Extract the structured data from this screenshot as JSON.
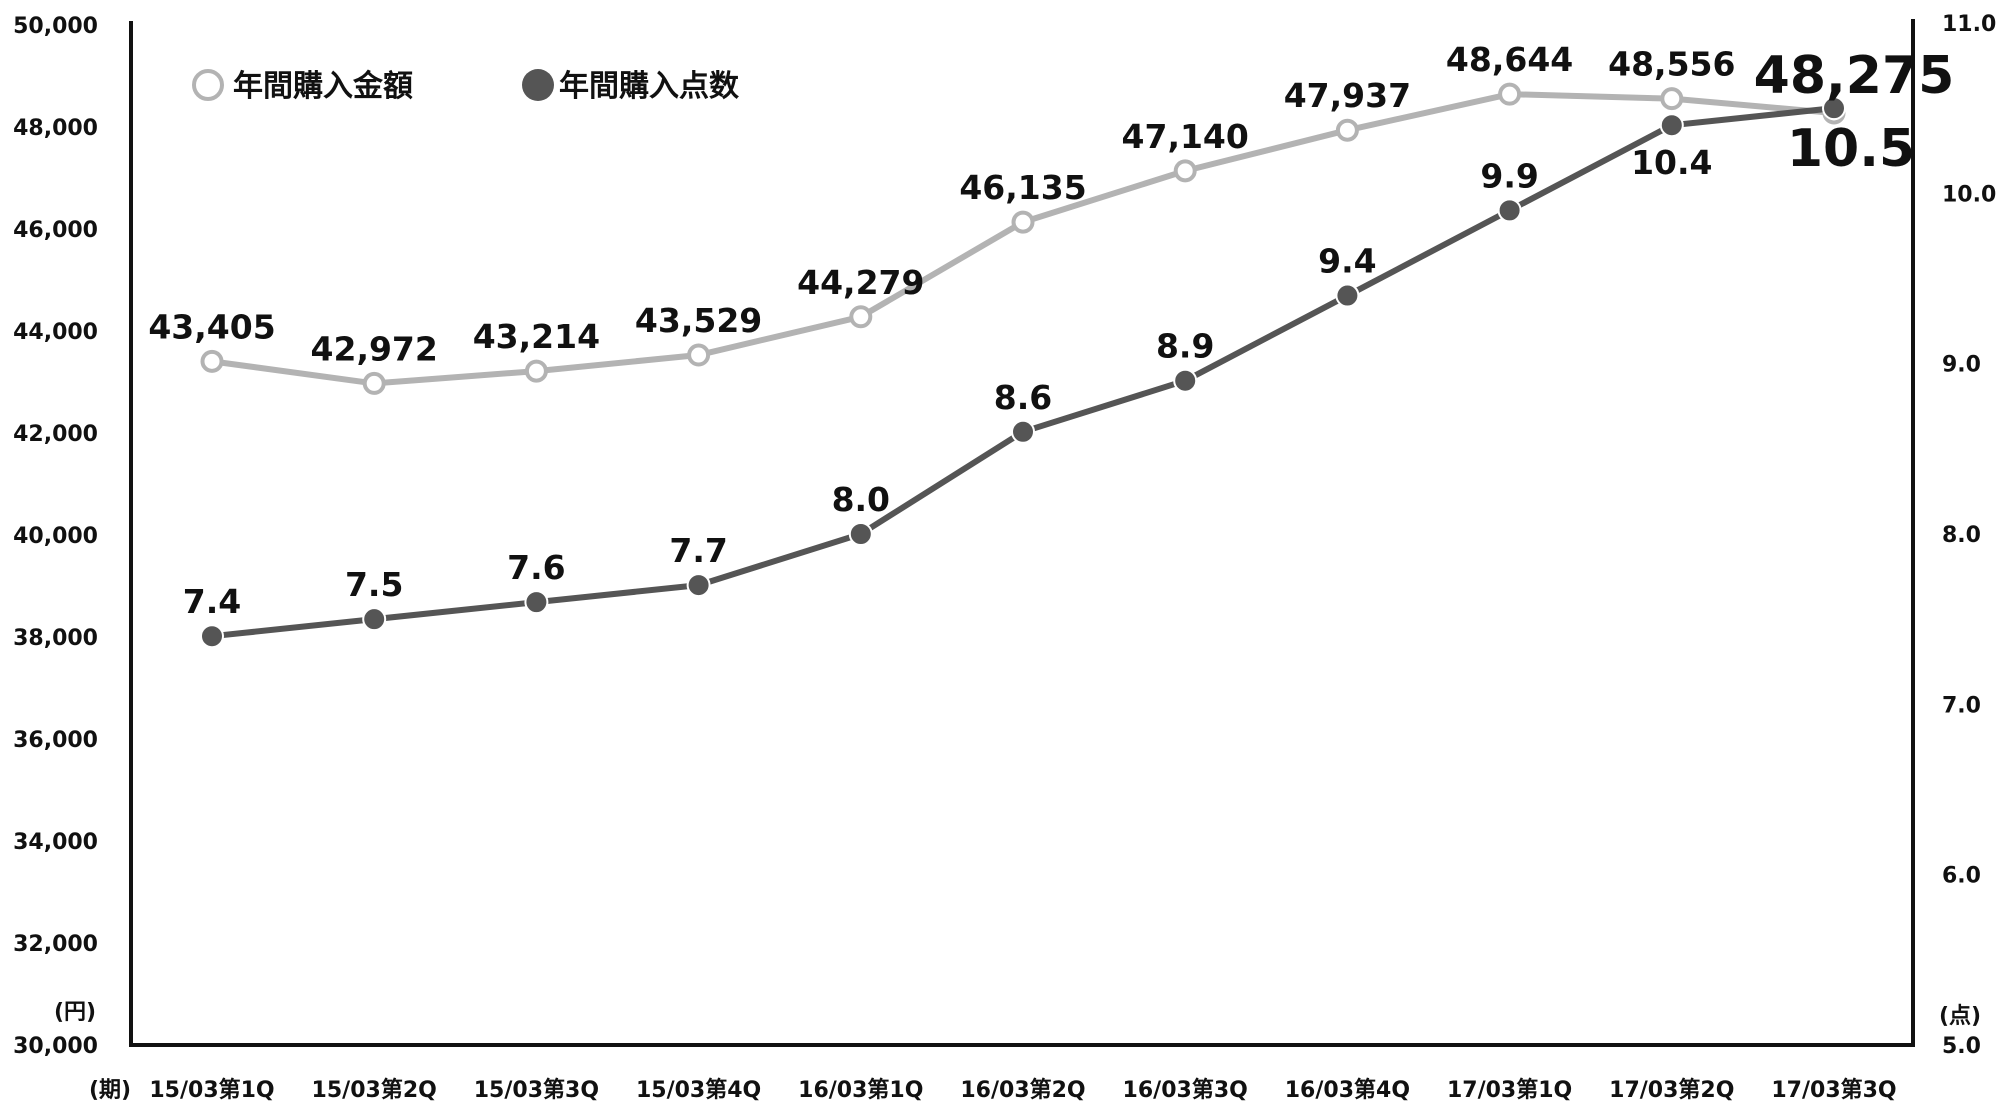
{
  "chart_data": {
    "type": "line",
    "categories": [
      "15/03第1Q",
      "15/03第2Q",
      "15/03第3Q",
      "15/03第4Q",
      "16/03第1Q",
      "16/03第2Q",
      "16/03第3Q",
      "16/03第4Q",
      "17/03第1Q",
      "17/03第2Q",
      "17/03第3Q"
    ],
    "xlabel": "(期)",
    "y_left": {
      "unit_label": "(円)",
      "ylim": [
        30000,
        50000
      ],
      "ticks": [
        "30,000",
        "32,000",
        "34,000",
        "36,000",
        "38,000",
        "40,000",
        "42,000",
        "44,000",
        "46,000",
        "48,000",
        "50,000"
      ]
    },
    "y_right": {
      "unit_label": "(点)",
      "ylim": [
        5.0,
        11.0
      ],
      "ticks": [
        "5.0",
        "6.0",
        "7.0",
        "8.0",
        "9.0",
        "10.0",
        "11.0"
      ]
    },
    "series": [
      {
        "name": "年間購入金額",
        "axis": "left",
        "color": "#b3b3b3",
        "marker": "hollow-circle",
        "values": [
          43405,
          42972,
          43214,
          43529,
          44279,
          46135,
          47140,
          47937,
          48644,
          48556,
          48275
        ],
        "labels": [
          "43,405",
          "42,972",
          "43,214",
          "43,529",
          "44,279",
          "46,135",
          "47,140",
          "47,937",
          "48,644",
          "48,556",
          "48,275"
        ]
      },
      {
        "name": "年間購入点数",
        "axis": "right",
        "color": "#555555",
        "marker": "filled-circle",
        "values": [
          7.4,
          7.5,
          7.6,
          7.7,
          8.0,
          8.6,
          8.9,
          9.4,
          9.9,
          10.4,
          10.5
        ],
        "labels": [
          "7.4",
          "7.5",
          "7.6",
          "7.7",
          "8.0",
          "8.6",
          "8.9",
          "9.4",
          "9.9",
          "10.4",
          "10.5"
        ]
      }
    ],
    "emphasized_last_point": true,
    "legend_position": "top-left",
    "grid": false
  }
}
